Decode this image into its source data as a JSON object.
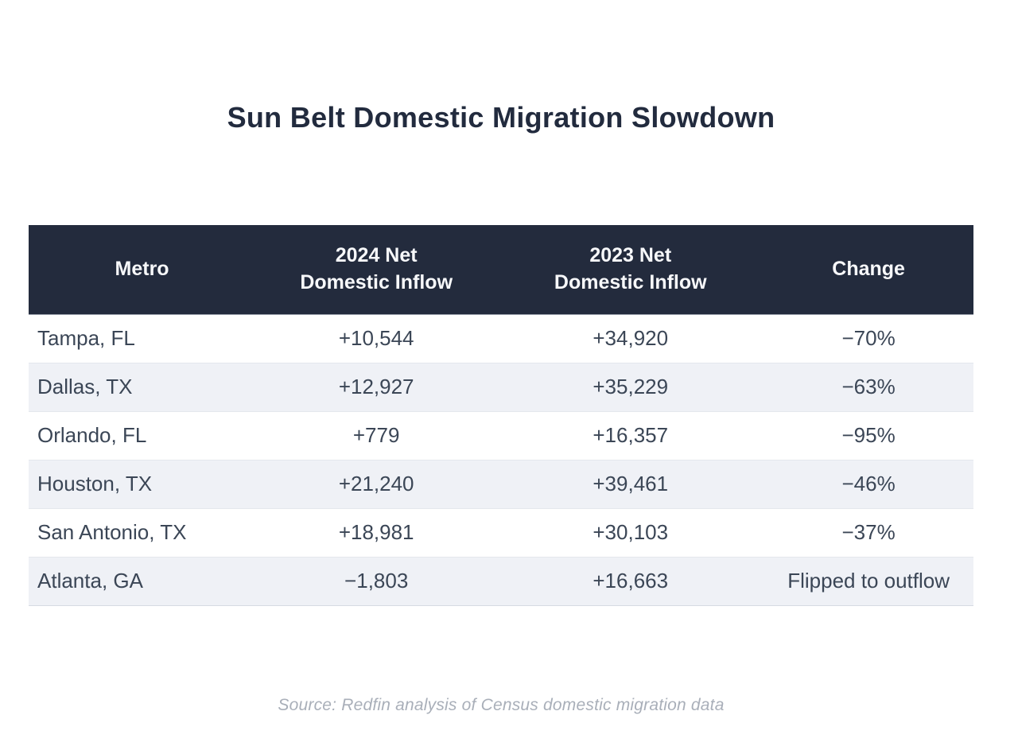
{
  "page": {
    "title": "Sun Belt Domestic Migration Slowdown",
    "source_note": "Source: Redfin analysis of Census domestic migration data"
  },
  "colors": {
    "header_bg": "#232B3D",
    "header_text": "#F7F8FA",
    "row_alt_bg": "#EFF1F6",
    "row_text": "#3B4656",
    "title_text": "#222B3E",
    "source_text": "#A9AFB9"
  },
  "table": {
    "columns": [
      {
        "label": "Metro"
      },
      {
        "label": "2024 Net\nDomestic Inflow"
      },
      {
        "label": "2023 Net\nDomestic Inflow"
      },
      {
        "label": "Change"
      }
    ],
    "rows": [
      {
        "metro": "Tampa, FL",
        "inflow_2024": "+10,544",
        "inflow_2023": "+34,920",
        "change": "−70%"
      },
      {
        "metro": "Dallas, TX",
        "inflow_2024": "+12,927",
        "inflow_2023": "+35,229",
        "change": "−63%"
      },
      {
        "metro": "Orlando, FL",
        "inflow_2024": "+779",
        "inflow_2023": "+16,357",
        "change": "−95%"
      },
      {
        "metro": "Houston, TX",
        "inflow_2024": "+21,240",
        "inflow_2023": "+39,461",
        "change": "−46%"
      },
      {
        "metro": "San Antonio, TX",
        "inflow_2024": "+18,981",
        "inflow_2023": "+30,103",
        "change": "−37%"
      },
      {
        "metro": "Atlanta, GA",
        "inflow_2024": "−1,803",
        "inflow_2023": "+16,663",
        "change": "Flipped to outflow"
      }
    ]
  },
  "chart_data": {
    "type": "table",
    "title": "Sun Belt Domestic Migration Slowdown",
    "columns": [
      "Metro",
      "2024 Net Domestic Inflow",
      "2023 Net Domestic Inflow",
      "Change"
    ],
    "rows": [
      [
        "Tampa, FL",
        10544,
        34920,
        "-70%"
      ],
      [
        "Dallas, TX",
        12927,
        35229,
        "-63%"
      ],
      [
        "Orlando, FL",
        779,
        16357,
        "-95%"
      ],
      [
        "Houston, TX",
        21240,
        39461,
        "-46%"
      ],
      [
        "San Antonio, TX",
        18981,
        30103,
        "-37%"
      ],
      [
        "Atlanta, GA",
        -1803,
        16663,
        "Flipped to outflow"
      ]
    ],
    "source": "Source: Redfin analysis of Census domestic migration data",
    "layout": {
      "header_style": "dark-navy band, white bold text",
      "row_striping": "white / light gray alternating",
      "alignment": "metro left-aligned, values centered"
    }
  }
}
